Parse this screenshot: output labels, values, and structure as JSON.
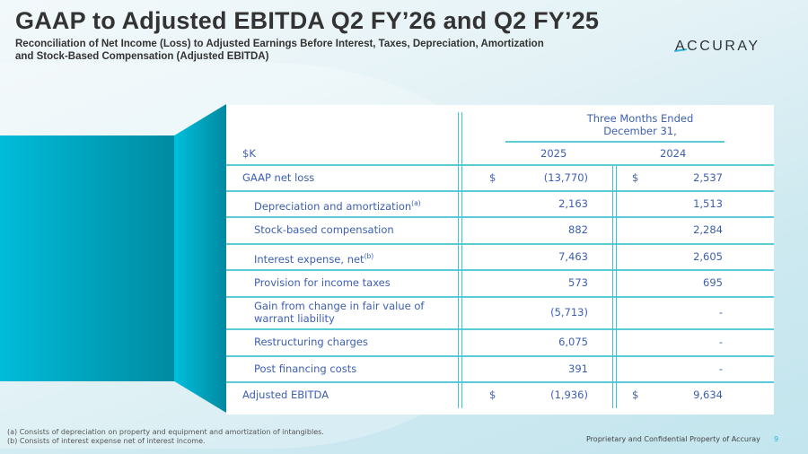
{
  "title": "GAAP to Adjusted EBITDA Q2 FY’26 and Q2 FY’25",
  "subtitle_line1": "Reconciliation of Net Income (Loss) to Adjusted Earnings Before Interest, Taxes, Depreciation, Amortization",
  "subtitle_line2": "and Stock-Based Compensation (Adjusted EBITDA)",
  "logo": "ACCURAY",
  "table": {
    "period_line1": "Three Months Ended",
    "period_line2": "December 31,",
    "unit_label": "$K",
    "col_2025": "2025",
    "col_2024": "2024",
    "rows": [
      {
        "label": "GAAP net loss",
        "sup": "",
        "cur1": "$",
        "v2025": "(13,770)",
        "cur2": "$",
        "v2024": "2,537"
      },
      {
        "label": "Depreciation and amortization",
        "sup": "(a)",
        "cur1": "",
        "v2025": "2,163",
        "cur2": "",
        "v2024": "1,513"
      },
      {
        "label": "Stock-based compensation",
        "sup": "",
        "cur1": "",
        "v2025": "882",
        "cur2": "",
        "v2024": "2,284"
      },
      {
        "label": "Interest expense, net",
        "sup": "(b)",
        "cur1": "",
        "v2025": "7,463",
        "cur2": "",
        "v2024": "2,605"
      },
      {
        "label": "Provision for income taxes",
        "sup": "",
        "cur1": "",
        "v2025": "573",
        "cur2": "",
        "v2024": "695"
      },
      {
        "label": "Gain from change in fair value of",
        "label2": "warrant liability",
        "sup": "",
        "cur1": "",
        "v2025": "(5,713)",
        "cur2": "",
        "v2024": "-"
      },
      {
        "label": "Restructuring charges",
        "sup": "",
        "cur1": "",
        "v2025": "6,075",
        "cur2": "",
        "v2024": "-"
      },
      {
        "label": "Post financing costs",
        "sup": "",
        "cur1": "",
        "v2025": "391",
        "cur2": "",
        "v2024": "-"
      },
      {
        "label": "Adjusted EBITDA",
        "sup": "",
        "cur1": "$",
        "v2025": "(1,936)",
        "cur2": "$",
        "v2024": "9,634"
      }
    ]
  },
  "footnotes": [
    "(a) Consists of depreciation on property and equipment and amortization of intangibles.",
    "(b) Consists of interest expense net of interest income."
  ],
  "footer": {
    "confidential": "Proprietary and Confidential Property of Accuray",
    "page": "9"
  },
  "colors": {
    "accent": "#00bcd9",
    "table_text": "#3d5fb0",
    "rule": "#5ccbd8"
  }
}
